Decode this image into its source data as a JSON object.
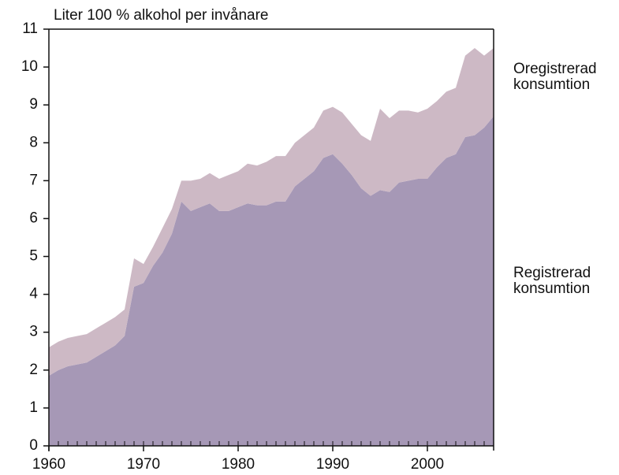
{
  "chart_data": {
    "type": "stacked_area",
    "title": "Liter 100 % alkohol per invånare",
    "x": [
      1960,
      1961,
      1962,
      1963,
      1964,
      1965,
      1966,
      1967,
      1968,
      1969,
      1970,
      1971,
      1972,
      1973,
      1974,
      1975,
      1976,
      1977,
      1978,
      1979,
      1980,
      1981,
      1982,
      1983,
      1984,
      1985,
      1986,
      1987,
      1988,
      1989,
      1990,
      1991,
      1992,
      1993,
      1994,
      1995,
      1996,
      1997,
      1998,
      1999,
      2000,
      2001,
      2002,
      2003,
      2004,
      2005,
      2006,
      2007
    ],
    "series": [
      {
        "name": "Registrerad konsumtion",
        "color": "#a698b6",
        "values": [
          1.85,
          2.0,
          2.1,
          2.15,
          2.2,
          2.35,
          2.5,
          2.65,
          2.9,
          4.2,
          4.3,
          4.75,
          5.1,
          5.6,
          6.45,
          6.2,
          6.3,
          6.4,
          6.2,
          6.2,
          6.3,
          6.4,
          6.35,
          6.35,
          6.45,
          6.45,
          6.85,
          7.05,
          7.25,
          7.6,
          7.7,
          7.45,
          7.15,
          6.8,
          6.6,
          6.75,
          6.7,
          6.95,
          7.0,
          7.05,
          7.05,
          7.35,
          7.6,
          7.7,
          8.15,
          8.2,
          8.4,
          8.7
        ]
      },
      {
        "name": "Oregistrerad konsumtion",
        "color": "#cdb9c5",
        "values": [
          0.75,
          0.75,
          0.75,
          0.75,
          0.75,
          0.75,
          0.75,
          0.75,
          0.7,
          0.75,
          0.5,
          0.5,
          0.65,
          0.65,
          0.55,
          0.8,
          0.75,
          0.8,
          0.85,
          0.95,
          0.95,
          1.05,
          1.05,
          1.15,
          1.2,
          1.2,
          1.15,
          1.15,
          1.15,
          1.25,
          1.25,
          1.35,
          1.35,
          1.4,
          1.45,
          2.15,
          1.95,
          1.9,
          1.85,
          1.75,
          1.85,
          1.75,
          1.75,
          1.75,
          2.15,
          2.3,
          1.9,
          1.8
        ]
      }
    ],
    "xlim": [
      1960,
      2007
    ],
    "xticks": [
      1960,
      1970,
      1980,
      1990,
      2000
    ],
    "ylim": [
      0,
      11
    ],
    "yticks": [
      0,
      1,
      2,
      3,
      4,
      5,
      6,
      7,
      8,
      9,
      10,
      11
    ]
  }
}
